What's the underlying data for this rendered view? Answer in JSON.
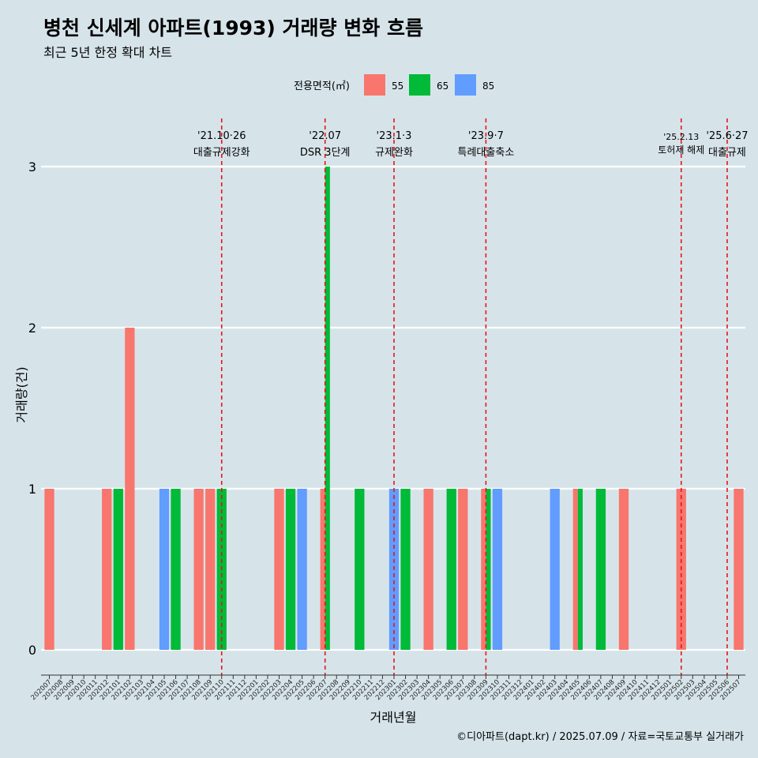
{
  "title": "병천 신세계 아파트(1993) 거래량 변화 흐름",
  "subtitle": "최근 5년 한정 확대 차트",
  "caption": "©디아파트(dapt.kr) / 2025.07.09 / 자료=국토교통부 실거래가",
  "chart_data": {
    "type": "bar",
    "xlabel": "거래년월",
    "ylabel": "거래량(건)",
    "ylim": [
      0,
      3
    ],
    "yticks": [
      0,
      1,
      2,
      3
    ],
    "grid": true,
    "legend": {
      "title": "전용면적(㎡)",
      "position": "top",
      "entries": [
        {
          "name": "55",
          "color": "#f8766d"
        },
        {
          "name": "65",
          "color": "#00ba38"
        },
        {
          "name": "85",
          "color": "#619cff"
        }
      ]
    },
    "categories": [
      "202007",
      "202008",
      "202009",
      "202010",
      "202011",
      "202012",
      "202101",
      "202102",
      "202103",
      "202104",
      "202105",
      "202106",
      "202107",
      "202108",
      "202109",
      "202110",
      "202111",
      "202112",
      "202201",
      "202202",
      "202203",
      "202204",
      "202205",
      "202206",
      "202207",
      "202208",
      "202209",
      "202210",
      "202211",
      "202212",
      "202301",
      "202302",
      "202303",
      "202304",
      "202305",
      "202306",
      "202307",
      "202308",
      "202309",
      "202310",
      "202311",
      "202312",
      "202401",
      "202402",
      "202403",
      "202404",
      "202405",
      "202406",
      "202407",
      "202408",
      "202409",
      "202410",
      "202411",
      "202412",
      "202501",
      "202502",
      "202503",
      "202504",
      "202505",
      "202506",
      "202507"
    ],
    "series": [
      {
        "name": "55",
        "color": "#f8766d",
        "values": [
          1,
          0,
          0,
          0,
          0,
          1,
          0,
          2,
          0,
          0,
          0,
          0,
          0,
          1,
          1,
          0,
          0,
          0,
          0,
          0,
          1,
          0,
          0,
          0,
          1,
          0,
          0,
          0,
          0,
          0,
          0,
          0,
          0,
          1,
          0,
          0,
          1,
          0,
          1,
          0,
          0,
          0,
          0,
          0,
          0,
          0,
          1,
          0,
          0,
          0,
          1,
          0,
          0,
          0,
          0,
          1,
          0,
          0,
          0,
          0,
          1
        ]
      },
      {
        "name": "65",
        "color": "#00ba38",
        "values": [
          0,
          0,
          0,
          0,
          0,
          0,
          1,
          0,
          0,
          0,
          0,
          1,
          0,
          0,
          0,
          1,
          0,
          0,
          0,
          0,
          0,
          1,
          0,
          0,
          3,
          0,
          0,
          1,
          0,
          0,
          0,
          1,
          0,
          0,
          0,
          1,
          0,
          0,
          1,
          0,
          0,
          0,
          0,
          0,
          0,
          0,
          1,
          0,
          1,
          0,
          0,
          0,
          0,
          0,
          0,
          0,
          0,
          0,
          0,
          0,
          0
        ]
      },
      {
        "name": "85",
        "color": "#619cff",
        "values": [
          0,
          0,
          0,
          0,
          0,
          0,
          0,
          0,
          0,
          0,
          1,
          0,
          0,
          0,
          0,
          0,
          0,
          0,
          0,
          0,
          0,
          0,
          1,
          0,
          0,
          0,
          0,
          0,
          0,
          0,
          1,
          0,
          0,
          0,
          0,
          0,
          0,
          0,
          0,
          1,
          0,
          0,
          0,
          0,
          1,
          0,
          0,
          0,
          0,
          0,
          0,
          0,
          0,
          0,
          0,
          0,
          0,
          0,
          0,
          0,
          0
        ]
      }
    ],
    "annotations": [
      {
        "month": "202110",
        "date": "'21.10·26",
        "label": "대출규제강화"
      },
      {
        "month": "202207",
        "date": "'22.07",
        "label": "DSR 3단계"
      },
      {
        "month": "202301",
        "date": "'23.1·3",
        "label": "규제완화"
      },
      {
        "month": "202309",
        "date": "'23.9·7",
        "label": "특례대출축소"
      },
      {
        "month": "202502",
        "date": "'25.2.13",
        "label": "토허제 해제"
      },
      {
        "month": "202506",
        "date": "'25.6·27",
        "label": "대출규제"
      }
    ]
  }
}
